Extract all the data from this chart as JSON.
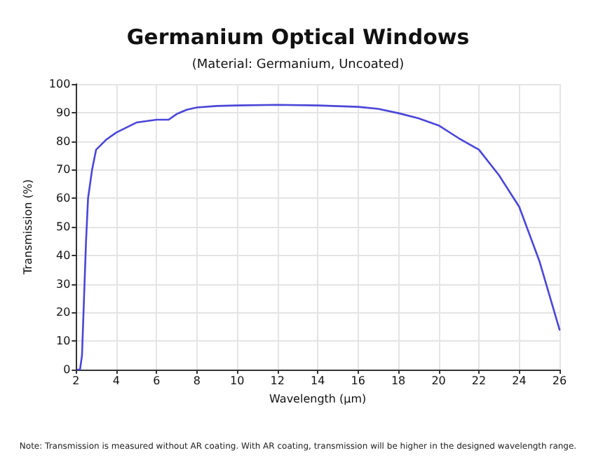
{
  "chart_data": {
    "type": "line",
    "title": "Germanium Optical Windows",
    "subtitle": "(Material: Germanium, Uncoated)",
    "xlabel": "Wavelength (μm)",
    "ylabel": "Transmission (%)",
    "annotations": [
      "Note: Transmission is measured without AR coating. With AR coating, transmission will be higher in the designed wavelength range."
    ],
    "x": [
      2.1,
      2.2,
      2.3,
      2.4,
      2.5,
      2.6,
      2.8,
      3.0,
      3.5,
      4,
      5,
      6,
      6.6,
      7,
      7.5,
      8,
      9,
      10,
      12,
      14,
      16,
      17,
      18,
      19,
      20,
      21,
      22,
      23,
      24,
      25,
      26
    ],
    "series": [
      {
        "color": "#4a46d8",
        "values": [
          0,
          0,
          5,
          25,
          45,
          60,
          70,
          77,
          80.5,
          83,
          86.5,
          87.5,
          87.5,
          89.5,
          91,
          91.8,
          92.3,
          92.5,
          92.7,
          92.5,
          92,
          91.3,
          89.8,
          88,
          85.5,
          81,
          77,
          68,
          57,
          38,
          14
        ]
      }
    ],
    "xlim": [
      2,
      26
    ],
    "xticks": [
      2,
      4,
      6,
      8,
      10,
      12,
      14,
      16,
      18,
      20,
      22,
      24,
      26
    ],
    "ylim": [
      0,
      100
    ],
    "yticks": [
      0,
      10,
      20,
      30,
      40,
      50,
      60,
      70,
      80,
      90,
      100
    ],
    "grid": true,
    "marker": "none",
    "line_style": "solid"
  }
}
